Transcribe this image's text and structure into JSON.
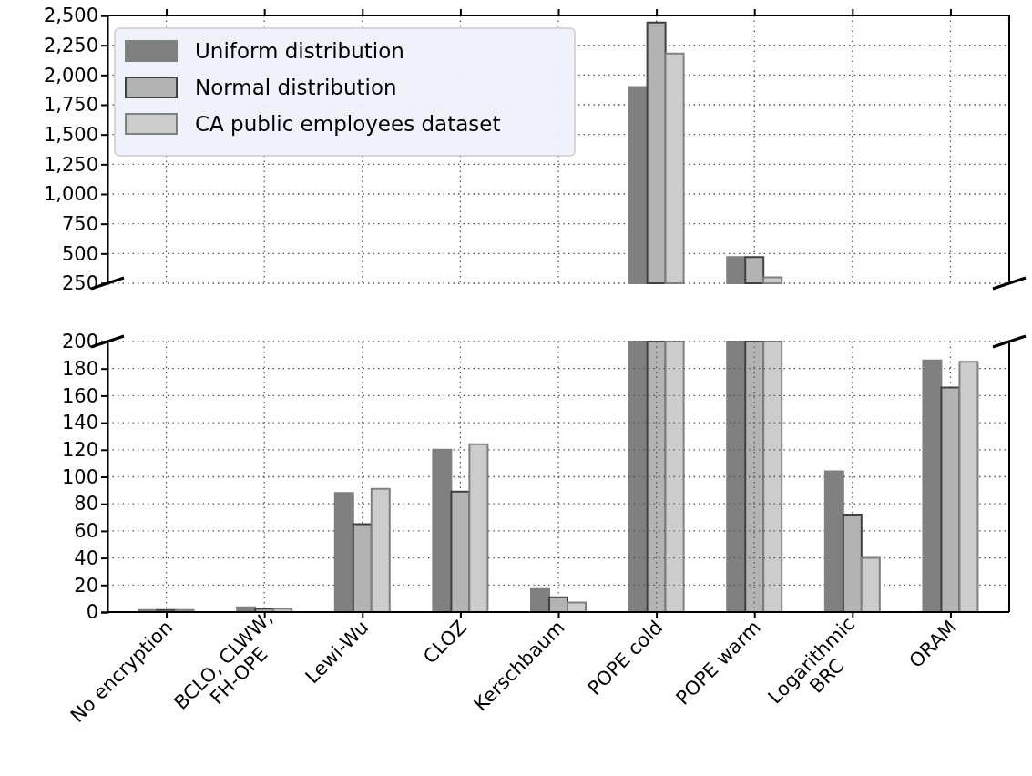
{
  "chart_data": [
    {
      "type": "bar",
      "categories": [
        null,
        null,
        null,
        null,
        null,
        null,
        null,
        null,
        null
      ],
      "series": [
        {
          "name": "Uniform distribution",
          "color": "#808080",
          "values": [
            null,
            null,
            null,
            null,
            null,
            1900,
            470,
            null,
            null
          ]
        },
        {
          "name": "Normal distribution",
          "color": "#b3b3b3",
          "values": [
            null,
            null,
            null,
            null,
            null,
            2440,
            470,
            null,
            null
          ]
        },
        {
          "name": "CA public employees dataset",
          "color": "#cccccc",
          "values": [
            null,
            null,
            null,
            null,
            null,
            2180,
            300,
            null,
            null
          ]
        }
      ],
      "ylim": [
        250,
        2500
      ],
      "yticks": [
        {
          "value": 250,
          "label": "250"
        },
        {
          "value": 500,
          "label": "500"
        },
        {
          "value": 750,
          "label": "750"
        },
        {
          "value": 1000,
          "label": "1,000"
        },
        {
          "value": 1250,
          "label": "1,250"
        },
        {
          "value": 1500,
          "label": "1,500"
        },
        {
          "value": 1750,
          "label": "1,750"
        },
        {
          "value": 2000,
          "label": "2,000"
        },
        {
          "value": 2250,
          "label": "2,250"
        },
        {
          "value": 2500,
          "label": "2,500"
        }
      ],
      "grid": true,
      "legend": "top left",
      "tick_labels": "y"
    },
    {
      "type": "bar",
      "categories": [
        "No encryption",
        "BCLO, CLWW,\nFH-OPE",
        "Lewi-Wu",
        "CLOZ",
        "Kerschbaum",
        "POPE cold",
        "POPE warm",
        "Logarithmic\nBRC",
        "ORAM"
      ],
      "series": [
        {
          "color": "#808080",
          "values": [
            1.5,
            3.5,
            88,
            120,
            17,
            null,
            null,
            104,
            186
          ]
        },
        {
          "color": "#b3b3b3",
          "values": [
            1.5,
            2.5,
            65,
            89,
            11,
            null,
            null,
            72,
            166
          ]
        },
        {
          "color": "#cccccc",
          "values": [
            1.5,
            2.5,
            91,
            124,
            7,
            null,
            null,
            40,
            185
          ]
        }
      ],
      "ylim": [
        0,
        200
      ],
      "yticks": [
        0,
        20,
        40,
        60,
        80,
        100,
        120,
        140,
        160,
        180,
        200
      ],
      "grid": true
    }
  ]
}
